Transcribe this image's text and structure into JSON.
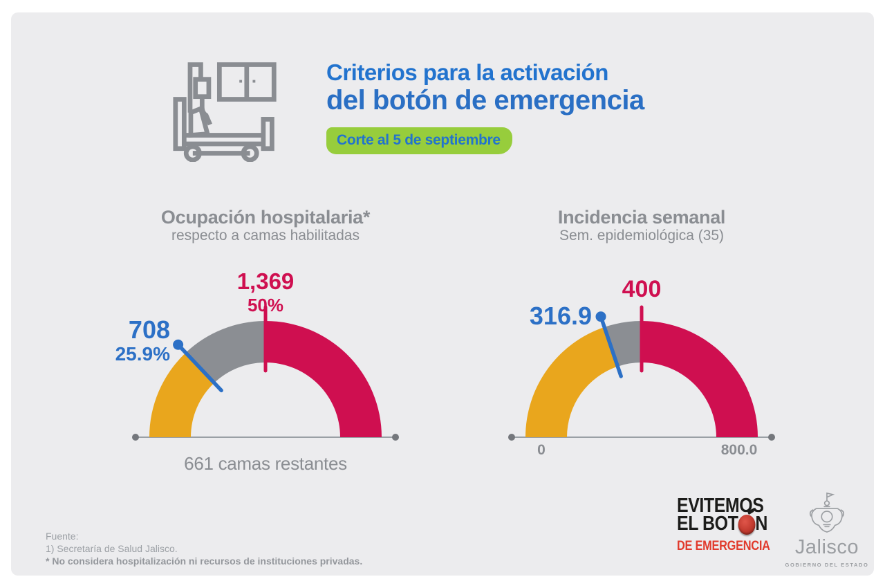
{
  "header": {
    "title_line1": "Criterios para la activación",
    "title_line2": "del botón de emergencia",
    "badge": "Corte al 5 de septiembre"
  },
  "colors": {
    "blue": "#2c70c6",
    "title_blue": "#2273ce",
    "crimson": "#cf0f50",
    "amber": "#e9a61d",
    "gray_arc": "#8b8e93",
    "green_badge": "#97cd3c",
    "text_gray": "#8a8d92",
    "baseline_gray": "#9aa0a5",
    "dot_gray": "#74777c"
  },
  "chart_data": [
    {
      "type": "gauge",
      "title": "Ocupación hospitalaria*",
      "subtitle": "respecto a camas habilitadas",
      "value": 708,
      "value_label": "708",
      "value_pct_label": "25.9%",
      "value_fraction": 0.259,
      "threshold": 1369,
      "threshold_label": "1,369",
      "threshold_pct_label": "50%",
      "threshold_fraction": 0.5,
      "axis_note": "661 camas restantes",
      "segment_order": [
        "amber_below_value",
        "gray_value_to_threshold",
        "crimson_above_threshold"
      ]
    },
    {
      "type": "gauge",
      "title": "Incidencia semanal",
      "subtitle": "Sem. epidemiológica (35)",
      "value": 316.9,
      "value_label": "316.9",
      "value_fraction": 0.3961,
      "threshold": 400,
      "threshold_label": "400",
      "threshold_fraction": 0.5,
      "axis_min_label": "0",
      "axis_max_label": "800.0",
      "axis_range": [
        0,
        800
      ],
      "segment_order": [
        "amber_below_value",
        "gray_value_to_threshold",
        "crimson_above_threshold"
      ]
    }
  ],
  "footer": {
    "line1": "Fuente:",
    "line2": "1) Secretaría de Salud Jalisco.",
    "line3": "* No considera hospitalización ni recursos de instituciones privadas."
  },
  "logos": {
    "campaign_line1": "EVITEMOS",
    "campaign_line2_pre": "EL BOT",
    "campaign_line2_post": "N",
    "campaign_line3": "DE EMERGENCIA",
    "jalisco_name": "Jalisco",
    "jalisco_sub": "GOBIERNO DEL ESTADO"
  }
}
